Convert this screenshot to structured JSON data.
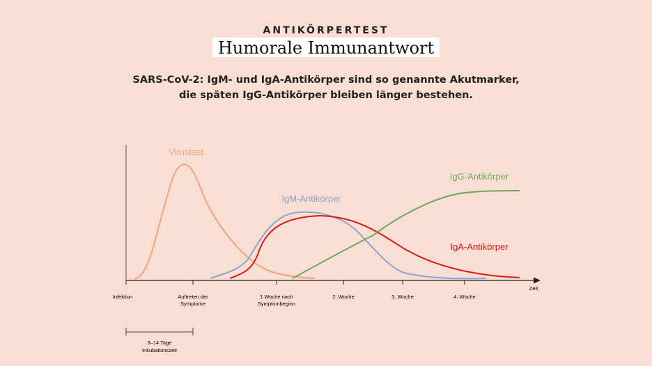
{
  "header": {
    "kicker": "ANTIKÖRPERTEST",
    "title": "Humorale Immunantwort",
    "subtitle_line1": "SARS-CoV-2: IgM- und IgA-Antikörper sind so genannte Akutmarker,",
    "subtitle_line2": "die späten IgG-Antikörper bleiben länger bestehen."
  },
  "chart_data": {
    "type": "line",
    "xlabel": "Zeit",
    "ylabel": "",
    "grid": false,
    "ticks": [
      {
        "line1": "Infektion",
        "line2": ""
      },
      {
        "line1": "Auftreten der",
        "line2": "Symptome"
      },
      {
        "line1": "1 Woche nach",
        "line2": "Symptombeginn"
      },
      {
        "line1": "2. Woche",
        "line2": ""
      },
      {
        "line1": "3. Woche",
        "line2": ""
      },
      {
        "line1": "4. Woche",
        "line2": ""
      }
    ],
    "incubation": {
      "line1": "3–14 Tage",
      "line2": "Inkubationszeit"
    },
    "series": [
      {
        "name": "Viruslast",
        "color": "#f0a283"
      },
      {
        "name": "IgM-Antikörper",
        "color": "#8aa4d3"
      },
      {
        "name": "IgG-Antikörper",
        "color": "#6fa75c"
      },
      {
        "name": "IgA-Antikörper",
        "color": "#d7191c"
      }
    ]
  }
}
